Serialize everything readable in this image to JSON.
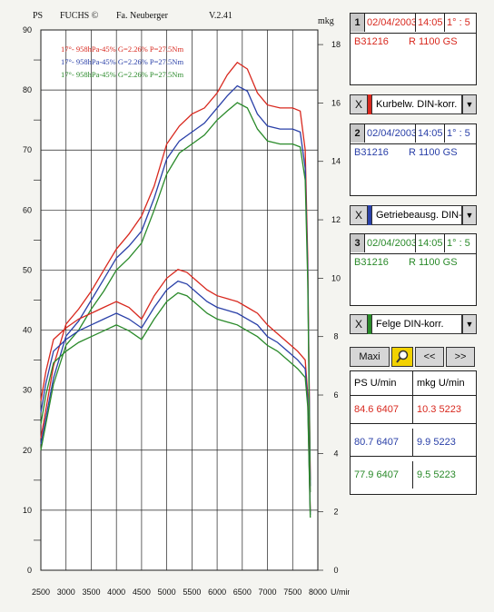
{
  "header": {
    "ps_label": "PS",
    "brand": "FUCHS ©",
    "company": "Fa. Neuberger",
    "version": "V.2.41",
    "mkg_label": "mkg"
  },
  "legend": [
    {
      "text": "17°- 958hPa-45% G=2.26% P=27.5Nm",
      "color": "#d8281e"
    },
    {
      "text": "17°- 958hPa-45% G=2.26% P=27.5Nm",
      "color": "#2a40a8"
    },
    {
      "text": "17°- 958hPa-45% G=2.26% P=27.5Nm",
      "color": "#2a8a2a"
    }
  ],
  "chart_data": {
    "type": "line",
    "x_unit": "U/min",
    "xlim": [
      2500,
      8000
    ],
    "x_ticks": [
      2500,
      3000,
      3500,
      4000,
      4500,
      5000,
      5500,
      6000,
      6500,
      7000,
      7500,
      8000
    ],
    "left_axis": {
      "label": "PS",
      "ylim": [
        0,
        90
      ],
      "ticks": [
        0,
        10,
        20,
        30,
        40,
        50,
        60,
        70,
        80,
        90
      ]
    },
    "right_axis": {
      "label": "mkg",
      "ylim": [
        0,
        18.5
      ],
      "ticks": [
        0,
        2,
        4,
        6,
        8,
        10,
        12,
        14,
        16,
        18
      ]
    },
    "grid": true,
    "power_series": [
      {
        "name": "PS 1",
        "color": "#d8281e",
        "x": [
          2500,
          2750,
          3000,
          3250,
          3500,
          3750,
          4000,
          4250,
          4500,
          4750,
          5000,
          5250,
          5500,
          5750,
          6000,
          6200,
          6400,
          6600,
          6800,
          7000,
          7250,
          7500,
          7650,
          7750,
          7800,
          7850
        ],
        "y": [
          22,
          34,
          41,
          43.5,
          46.5,
          50,
          53.5,
          56,
          59,
          64,
          71,
          74,
          76,
          77,
          79.5,
          82.5,
          84.6,
          83.5,
          79.5,
          77.5,
          77,
          77,
          76.5,
          70,
          52,
          15
        ]
      },
      {
        "name": "PS 2",
        "color": "#2a40a8",
        "x": [
          2500,
          2750,
          3000,
          3250,
          3500,
          3750,
          4000,
          4250,
          4500,
          4750,
          5000,
          5250,
          5500,
          5750,
          6000,
          6200,
          6400,
          6600,
          6800,
          7000,
          7250,
          7500,
          7650,
          7750,
          7800,
          7850
        ],
        "y": [
          21,
          32,
          39,
          41.5,
          45,
          48.5,
          52,
          54,
          56.5,
          62,
          68.5,
          71.5,
          73,
          74.5,
          77,
          79,
          80.7,
          79.8,
          76,
          74,
          73.5,
          73.5,
          73,
          67,
          50,
          14
        ]
      },
      {
        "name": "PS 3",
        "color": "#2a8a2a",
        "x": [
          2500,
          2750,
          3000,
          3250,
          3500,
          3750,
          4000,
          4250,
          4500,
          4750,
          5000,
          5250,
          5500,
          5750,
          6000,
          6200,
          6400,
          6600,
          6800,
          7000,
          7250,
          7500,
          7650,
          7750,
          7800,
          7850
        ],
        "y": [
          20,
          31,
          37.5,
          40,
          43.5,
          46.5,
          50,
          52,
          54.5,
          60,
          66,
          69.5,
          71,
          72.5,
          75,
          76.5,
          77.9,
          77,
          73.5,
          71.5,
          71,
          71,
          70.5,
          65,
          48,
          13
        ]
      }
    ],
    "torque_series": [
      {
        "name": "mkg 1",
        "color": "#d8281e",
        "x": [
          2500,
          2600,
          2750,
          3000,
          3250,
          3500,
          3750,
          4000,
          4250,
          4500,
          4750,
          5000,
          5223,
          5400,
          5600,
          5800,
          6000,
          6200,
          6400,
          6600,
          6800,
          7000,
          7200,
          7400,
          7600,
          7750,
          7800,
          7850
        ],
        "y": [
          5.8,
          6.8,
          7.9,
          8.3,
          8.6,
          8.8,
          9.0,
          9.2,
          9.0,
          8.6,
          9.4,
          10.0,
          10.3,
          10.2,
          9.9,
          9.6,
          9.4,
          9.3,
          9.2,
          9.0,
          8.8,
          8.4,
          8.1,
          7.8,
          7.5,
          7.2,
          6.0,
          2.0
        ]
      },
      {
        "name": "mkg 2",
        "color": "#2a40a8",
        "x": [
          2500,
          2600,
          2750,
          3000,
          3250,
          3500,
          3750,
          4000,
          4250,
          4500,
          4750,
          5000,
          5223,
          5400,
          5600,
          5800,
          6000,
          6200,
          6400,
          6600,
          6800,
          7000,
          7200,
          7400,
          7600,
          7750,
          7800,
          7850
        ],
        "y": [
          5.4,
          6.4,
          7.5,
          7.9,
          8.2,
          8.4,
          8.6,
          8.8,
          8.6,
          8.3,
          9.0,
          9.6,
          9.9,
          9.8,
          9.5,
          9.2,
          9.0,
          8.9,
          8.8,
          8.6,
          8.4,
          8.0,
          7.8,
          7.5,
          7.2,
          6.9,
          5.8,
          1.9
        ]
      },
      {
        "name": "mkg 3",
        "color": "#2a8a2a",
        "x": [
          2500,
          2600,
          2750,
          3000,
          3250,
          3500,
          3750,
          4000,
          4250,
          4500,
          4750,
          5000,
          5223,
          5400,
          5600,
          5800,
          6000,
          6200,
          6400,
          6600,
          6800,
          7000,
          7200,
          7400,
          7600,
          7750,
          7800,
          7850
        ],
        "y": [
          5.0,
          6.0,
          7.1,
          7.5,
          7.8,
          8.0,
          8.2,
          8.4,
          8.2,
          7.9,
          8.6,
          9.2,
          9.5,
          9.4,
          9.1,
          8.8,
          8.6,
          8.5,
          8.4,
          8.2,
          8.0,
          7.7,
          7.5,
          7.2,
          6.9,
          6.6,
          5.6,
          1.8
        ]
      }
    ]
  },
  "runs": [
    {
      "num": "1",
      "date": "02/04/2003",
      "time": "14:05",
      "ratio": "1° : 5",
      "id": "B31216",
      "model": "R 1100 GS",
      "color": "#d8281e",
      "correction": "Kurbelw. DIN-korr."
    },
    {
      "num": "2",
      "date": "02/04/2003",
      "time": "14:05",
      "ratio": "1° : 5",
      "id": "B31216",
      "model": "R 1100 GS",
      "color": "#2a40a8",
      "correction": "Getriebeausg. DIN-ko"
    },
    {
      "num": "3",
      "date": "02/04/2003",
      "time": "14:05",
      "ratio": "1° : 5",
      "id": "B31216",
      "model": "R 1100 GS",
      "color": "#2a8a2a",
      "correction": "Felge DIN-korr."
    }
  ],
  "controls": {
    "x_label": "X",
    "maxi": "Maxi",
    "prev": "<<",
    "next": ">>",
    "drop": "▼"
  },
  "results": {
    "headers": [
      "PS",
      "U/min",
      "mkg",
      "U/min"
    ],
    "rows": [
      {
        "ps": "84.6",
        "ps_rpm": "6407",
        "mkg": "10.3",
        "mkg_rpm": "5223",
        "color": "#d8281e"
      },
      {
        "ps": "80.7",
        "ps_rpm": "6407",
        "mkg": "9.9",
        "mkg_rpm": "5223",
        "color": "#2a40a8"
      },
      {
        "ps": "77.9",
        "ps_rpm": "6407",
        "mkg": "9.5",
        "mkg_rpm": "5223",
        "color": "#2a8a2a"
      }
    ]
  }
}
